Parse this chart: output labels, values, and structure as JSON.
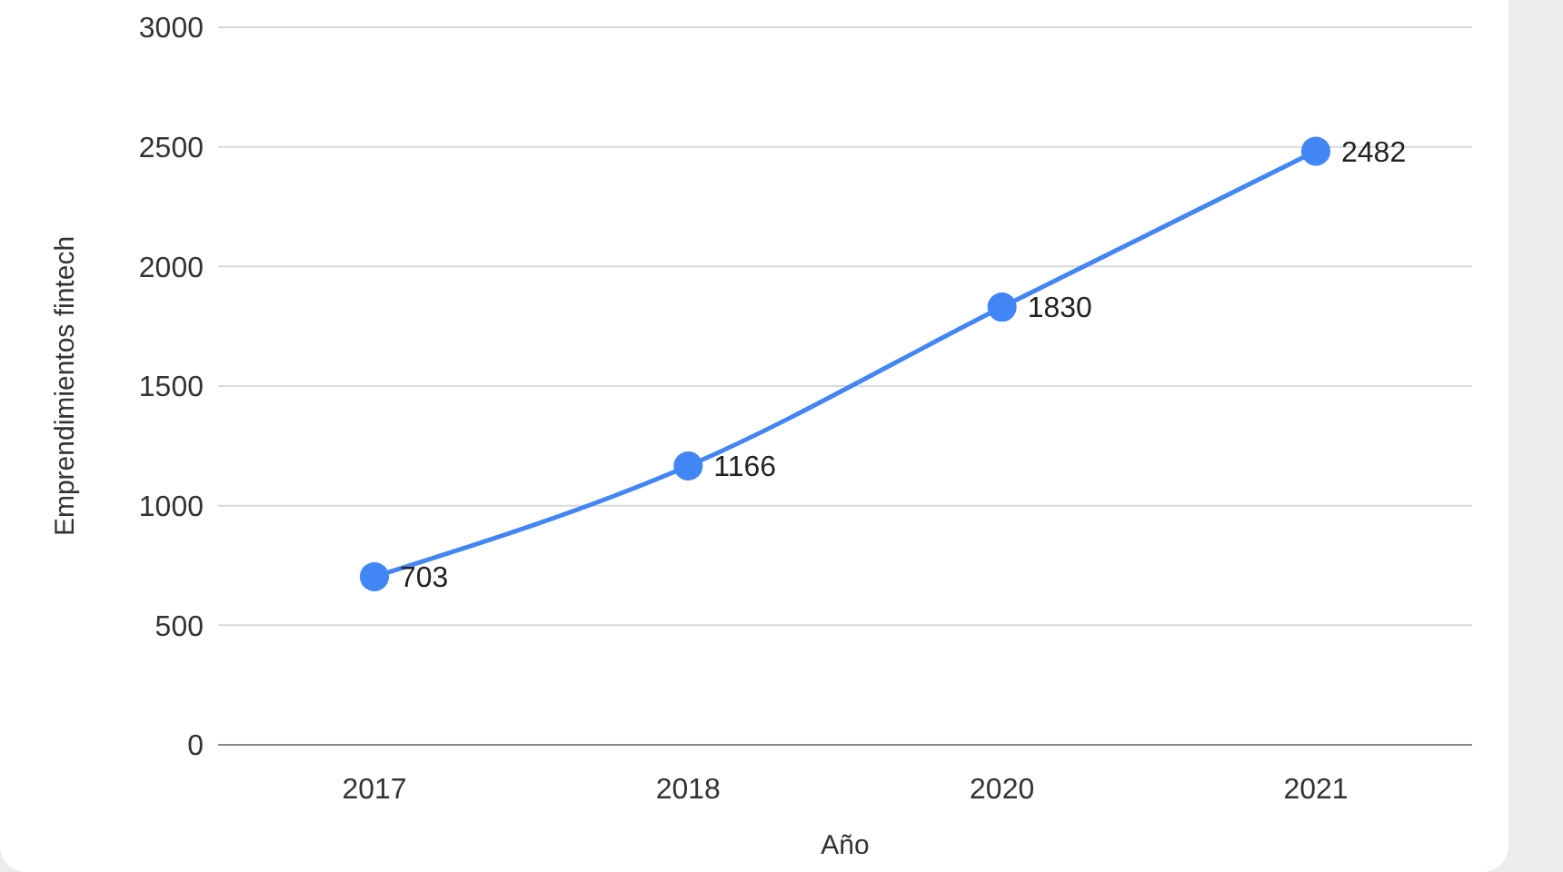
{
  "chart_data": {
    "type": "line",
    "xlabel": "Año",
    "ylabel": "Emprendimientos fintech",
    "categories": [
      "2017",
      "2018",
      "2020",
      "2021"
    ],
    "series": [
      {
        "color": "#4285f4",
        "values": [
          703,
          1166,
          1830,
          2482
        ]
      }
    ],
    "ylim": [
      0,
      3000
    ],
    "yticks": [
      0,
      500,
      1000,
      1500,
      2000,
      2500,
      3000
    ],
    "grid": "y",
    "marker": "circle",
    "data_labels": true,
    "legend": false
  }
}
